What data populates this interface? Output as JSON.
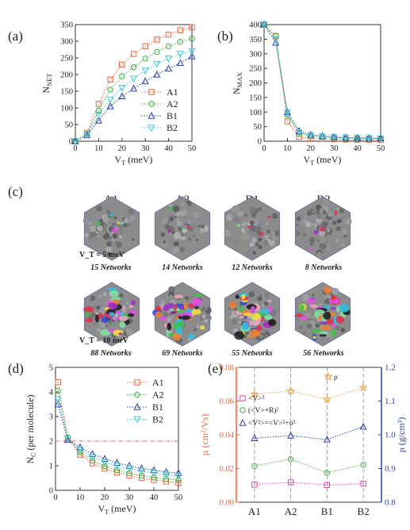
{
  "panel_a": {
    "label": "(a)",
    "chart_data": {
      "type": "line",
      "xlabel": "V_T (meV)",
      "ylabel": "N_NET",
      "xlim": [
        0,
        50
      ],
      "ylim": [
        0,
        350
      ],
      "xticks": [
        "0",
        "10",
        "20",
        "30",
        "40",
        "50"
      ],
      "yticks": [
        "0",
        "50",
        "100",
        "150",
        "200",
        "250",
        "300",
        "350"
      ],
      "legend": "bottom-right",
      "series": [
        {
          "name": "A1",
          "color": "#e8643c",
          "marker": "square",
          "x": [
            0,
            5,
            10,
            15,
            20,
            25,
            30,
            35,
            40,
            45,
            50
          ],
          "y": [
            0,
            25,
            112,
            185,
            230,
            262,
            285,
            305,
            320,
            333,
            342
          ]
        },
        {
          "name": "A2",
          "color": "#3cb03c",
          "marker": "circle",
          "x": [
            0,
            5,
            10,
            15,
            20,
            25,
            30,
            35,
            40,
            45,
            50
          ],
          "y": [
            0,
            22,
            92,
            155,
            195,
            222,
            248,
            268,
            285,
            298,
            308
          ]
        },
        {
          "name": "B1",
          "color": "#2840a8",
          "marker": "triangle-up",
          "x": [
            0,
            5,
            10,
            15,
            20,
            25,
            30,
            35,
            40,
            45,
            50
          ],
          "y": [
            0,
            18,
            62,
            105,
            135,
            158,
            180,
            200,
            218,
            235,
            255
          ]
        },
        {
          "name": "B2",
          "color": "#40c8d8",
          "marker": "triangle-down",
          "x": [
            0,
            5,
            10,
            15,
            20,
            25,
            30,
            35,
            40,
            45,
            50
          ],
          "y": [
            0,
            20,
            80,
            125,
            160,
            188,
            212,
            232,
            248,
            262,
            270
          ]
        }
      ]
    }
  },
  "panel_b": {
    "label": "(b)",
    "chart_data": {
      "type": "line",
      "xlabel": "V_T (meV)",
      "ylabel": "N_MAX",
      "xlim": [
        0,
        50
      ],
      "ylim": [
        0,
        400
      ],
      "xticks": [
        "0",
        "10",
        "20",
        "30",
        "40",
        "50"
      ],
      "yticks": [
        "0",
        "50",
        "100",
        "150",
        "200",
        "250",
        "300",
        "350",
        "400"
      ],
      "series": [
        {
          "name": "A1",
          "color": "#e8643c",
          "marker": "square",
          "x": [
            0,
            5,
            10,
            15,
            20,
            25,
            30,
            35,
            40,
            45,
            50
          ],
          "y": [
            400,
            360,
            68,
            15,
            10,
            8,
            7,
            6,
            5,
            5,
            5
          ]
        },
        {
          "name": "A2",
          "color": "#3cb03c",
          "marker": "circle",
          "x": [
            0,
            5,
            10,
            15,
            20,
            25,
            30,
            35,
            40,
            45,
            50
          ],
          "y": [
            400,
            362,
            90,
            25,
            18,
            14,
            12,
            10,
            10,
            9,
            9
          ]
        },
        {
          "name": "B1",
          "color": "#2840a8",
          "marker": "triangle-up",
          "x": [
            0,
            5,
            10,
            15,
            20,
            25,
            30,
            35,
            40,
            45,
            50
          ],
          "y": [
            400,
            338,
            100,
            35,
            22,
            18,
            15,
            13,
            12,
            11,
            10
          ]
        },
        {
          "name": "B2",
          "color": "#40c8d8",
          "marker": "triangle-down",
          "x": [
            0,
            5,
            10,
            15,
            20,
            25,
            30,
            35,
            40,
            45,
            50
          ],
          "y": [
            400,
            350,
            98,
            30,
            20,
            16,
            14,
            12,
            11,
            10,
            10
          ]
        }
      ]
    }
  },
  "panel_c": {
    "label": "(c)",
    "molecules": [
      "A1",
      "A2",
      "B1",
      "B2"
    ],
    "row1": {
      "vt_label": "V_T = 5 meV",
      "networks": [
        "15 Networks",
        "14 Networks",
        "12 Networks",
        "8 Networks"
      ]
    },
    "row2": {
      "vt_label": "V_T = 10 meV",
      "networks": [
        "88 Networks",
        "69 Networks",
        "55 Networks",
        "56 Networks"
      ]
    }
  },
  "panel_d": {
    "label": "(d)",
    "chart_data": {
      "type": "line",
      "xlabel": "V_T (meV)",
      "ylabel": "N_C (per molecule)",
      "xlim": [
        0,
        50
      ],
      "ylim": [
        0,
        5
      ],
      "xticks": [
        "0",
        "10",
        "20",
        "30",
        "40",
        "50"
      ],
      "yticks": [
        "0",
        "1",
        "2",
        "3",
        "4",
        "5"
      ],
      "reference_line": {
        "y": 2,
        "color": "#e0607a"
      },
      "legend": "top-right",
      "series": [
        {
          "name": "A1",
          "color": "#e8643c",
          "marker": "square",
          "x": [
            1,
            5,
            10,
            15,
            20,
            25,
            30,
            35,
            40,
            45,
            50
          ],
          "y": [
            4.4,
            2.1,
            1.45,
            1.1,
            0.88,
            0.72,
            0.6,
            0.5,
            0.42,
            0.36,
            0.3
          ]
        },
        {
          "name": "A2",
          "color": "#3cb03c",
          "marker": "circle",
          "x": [
            1,
            5,
            10,
            15,
            20,
            25,
            30,
            35,
            40,
            45,
            50
          ],
          "y": [
            4.05,
            2.15,
            1.55,
            1.2,
            0.98,
            0.82,
            0.7,
            0.6,
            0.52,
            0.46,
            0.42
          ]
        },
        {
          "name": "B1",
          "color": "#2840a8",
          "marker": "triangle-up",
          "x": [
            1,
            5,
            10,
            15,
            20,
            25,
            30,
            35,
            40,
            45,
            50
          ],
          "y": [
            3.5,
            2.05,
            1.75,
            1.48,
            1.28,
            1.12,
            1.0,
            0.9,
            0.82,
            0.75,
            0.7
          ]
        },
        {
          "name": "B2",
          "color": "#40c8d8",
          "marker": "triangle-down",
          "x": [
            1,
            5,
            10,
            15,
            20,
            25,
            30,
            35,
            40,
            45,
            50
          ],
          "y": [
            3.7,
            2.1,
            1.65,
            1.35,
            1.15,
            1.0,
            0.88,
            0.78,
            0.7,
            0.63,
            0.58
          ]
        }
      ]
    }
  },
  "panel_e": {
    "label": "(e)",
    "chart_data": {
      "type": "scatter",
      "categories": [
        "A1",
        "A2",
        "B1",
        "B2"
      ],
      "ylabel_left": "µ (cm²/Vs)",
      "ylabel_right": "ρ (g/cm³)",
      "ylim_left": [
        0,
        0.08
      ],
      "ylim_right": [
        0.8,
        1.2
      ],
      "yticks_left": [
        "0.00",
        "0.02",
        "0.04",
        "0.06",
        "0.08"
      ],
      "yticks_right": [
        "0.8",
        "0.9",
        "1.0",
        "1.1",
        "1.2"
      ],
      "left_axis_color": "#e8643c",
      "right_axis_color": "#2840a8",
      "series": [
        {
          "name": "ρ",
          "axis": "right",
          "color": "#f0a040",
          "marker": "star",
          "values": [
            1.12,
            1.13,
            1.105,
            1.14
          ]
        },
        {
          "name": "<V>²",
          "axis": "left",
          "color": "#e040c0",
          "marker": "square",
          "values": [
            0.0105,
            0.0118,
            0.0102,
            0.011
          ]
        },
        {
          "name": "(<V>+R)²",
          "axis": "left",
          "color": "#3cb03c",
          "marker": "circle",
          "values": [
            0.0215,
            0.0255,
            0.0175,
            0.0222
          ]
        },
        {
          "name": "<V²>=<V>²+σ²",
          "axis": "left",
          "color": "#2840a8",
          "marker": "triangle-up",
          "values": [
            0.038,
            0.0395,
            0.0372,
            0.0448
          ]
        }
      ]
    }
  }
}
